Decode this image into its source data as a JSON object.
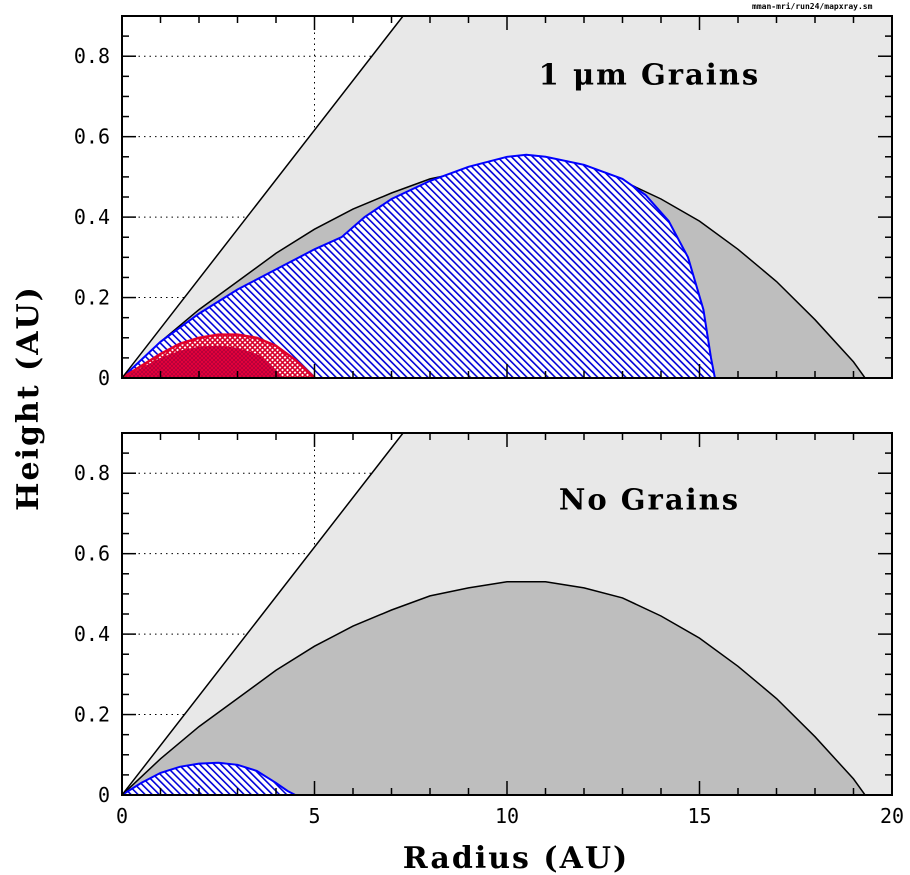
{
  "file_label": "mman-mri/run24/mapxray.sm",
  "chart_data": {
    "type": "area",
    "xlabel": "Radius (AU)",
    "ylabel": "Height (AU)",
    "xlim": [
      0,
      20
    ],
    "ylim": [
      0,
      0.9
    ],
    "x_ticks": [
      "0",
      "5",
      "10",
      "15",
      "20"
    ],
    "y_ticks": [
      "0",
      "0.2",
      "0.4",
      "0.6",
      "0.8"
    ],
    "grid": "dotted",
    "colors": {
      "outer_region": "#e8e8e8",
      "inner_region": "#bebebe",
      "blue_region": "#0000ff",
      "red_region": "#e0002a"
    },
    "panels": [
      {
        "title": "1 μm Grains",
        "surface_line": [
          [
            0,
            0
          ],
          [
            7.3,
            0.9
          ]
        ],
        "gray_boundary": [
          [
            0,
            0
          ],
          [
            1,
            0.09
          ],
          [
            2,
            0.17
          ],
          [
            3,
            0.24
          ],
          [
            4,
            0.31
          ],
          [
            5,
            0.37
          ],
          [
            6,
            0.42
          ],
          [
            7,
            0.46
          ],
          [
            8,
            0.495
          ],
          [
            9,
            0.515
          ],
          [
            10,
            0.53
          ],
          [
            11,
            0.53
          ],
          [
            12,
            0.515
          ],
          [
            13,
            0.49
          ],
          [
            14,
            0.445
          ],
          [
            15,
            0.39
          ],
          [
            16,
            0.32
          ],
          [
            17,
            0.24
          ],
          [
            18,
            0.145
          ],
          [
            19,
            0.04
          ],
          [
            19.3,
            0
          ]
        ],
        "blue_region": [
          [
            0,
            0
          ],
          [
            1,
            0.09
          ],
          [
            2,
            0.16
          ],
          [
            3,
            0.22
          ],
          [
            4,
            0.27
          ],
          [
            5,
            0.32
          ],
          [
            5.7,
            0.35
          ],
          [
            6.3,
            0.4
          ],
          [
            7,
            0.445
          ],
          [
            8,
            0.49
          ],
          [
            9,
            0.525
          ],
          [
            10,
            0.55
          ],
          [
            10.5,
            0.555
          ],
          [
            11,
            0.55
          ],
          [
            12,
            0.53
          ],
          [
            13,
            0.495
          ],
          [
            13.6,
            0.455
          ],
          [
            14.2,
            0.39
          ],
          [
            14.7,
            0.3
          ],
          [
            15.1,
            0.17
          ],
          [
            15.3,
            0.05
          ],
          [
            15.4,
            0
          ]
        ],
        "red_region": [
          [
            0,
            0
          ],
          [
            0.5,
            0.03
          ],
          [
            1,
            0.06
          ],
          [
            1.5,
            0.085
          ],
          [
            2,
            0.1
          ],
          [
            2.5,
            0.108
          ],
          [
            3,
            0.108
          ],
          [
            3.5,
            0.1
          ],
          [
            4,
            0.08
          ],
          [
            4.5,
            0.045
          ],
          [
            4.9,
            0.01
          ],
          [
            5,
            0
          ]
        ],
        "dark_red_region": [
          [
            0,
            0
          ],
          [
            0.5,
            0.025
          ],
          [
            1,
            0.05
          ],
          [
            1.5,
            0.068
          ],
          [
            2,
            0.078
          ],
          [
            2.5,
            0.08
          ],
          [
            3,
            0.075
          ],
          [
            3.5,
            0.06
          ],
          [
            3.8,
            0.04
          ],
          [
            4.1,
            0.01
          ],
          [
            4.2,
            0
          ]
        ]
      },
      {
        "title": "No Grains",
        "surface_line": [
          [
            0,
            0
          ],
          [
            7.3,
            0.9
          ]
        ],
        "gray_boundary": [
          [
            0,
            0
          ],
          [
            1,
            0.09
          ],
          [
            2,
            0.17
          ],
          [
            3,
            0.24
          ],
          [
            4,
            0.31
          ],
          [
            5,
            0.37
          ],
          [
            6,
            0.42
          ],
          [
            7,
            0.46
          ],
          [
            8,
            0.495
          ],
          [
            9,
            0.515
          ],
          [
            10,
            0.53
          ],
          [
            11,
            0.53
          ],
          [
            12,
            0.515
          ],
          [
            13,
            0.49
          ],
          [
            14,
            0.445
          ],
          [
            15,
            0.39
          ],
          [
            16,
            0.32
          ],
          [
            17,
            0.24
          ],
          [
            18,
            0.145
          ],
          [
            19,
            0.04
          ],
          [
            19.3,
            0
          ]
        ],
        "blue_region": [
          [
            0,
            0
          ],
          [
            0.5,
            0.03
          ],
          [
            1,
            0.055
          ],
          [
            1.5,
            0.07
          ],
          [
            2,
            0.078
          ],
          [
            2.5,
            0.08
          ],
          [
            3,
            0.075
          ],
          [
            3.5,
            0.06
          ],
          [
            4,
            0.03
          ],
          [
            4.3,
            0.01
          ],
          [
            4.5,
            0
          ]
        ]
      }
    ]
  }
}
